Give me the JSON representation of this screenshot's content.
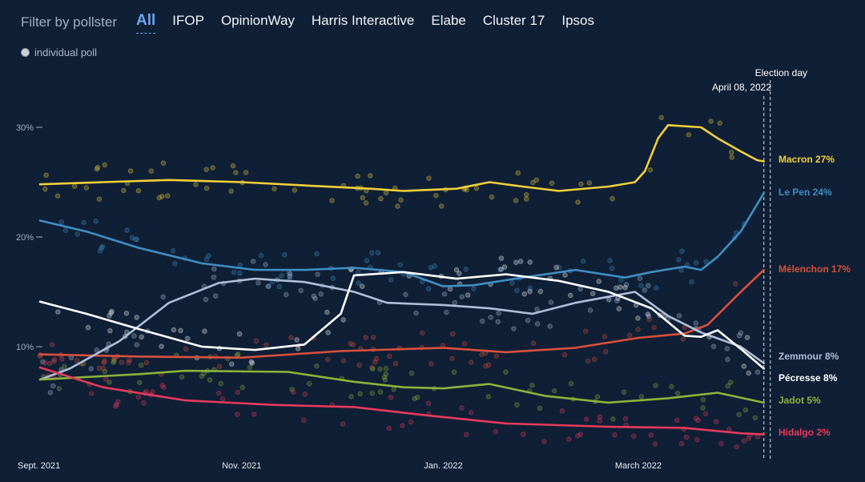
{
  "filter": {
    "label": "Filter by pollster",
    "tabs": [
      "All",
      "IFOP",
      "OpinionWay",
      "Harris Interactive",
      "Elabe",
      "Cluster 17",
      "Ipsos"
    ],
    "active": "All"
  },
  "legend": {
    "individual_poll": "individual poll"
  },
  "election": {
    "label": "Election day",
    "date": "April 08, 2022"
  },
  "chart_data": {
    "type": "line",
    "x_ticks": [
      "Sept. 2021",
      "Nov. 2021",
      "Jan. 2022",
      "March 2022"
    ],
    "y_ticks": [
      "10%",
      "20%",
      "30%"
    ],
    "ylim": [
      0,
      35
    ],
    "x_domain": [
      "2021-09-01",
      "2022-04-10"
    ],
    "series": [
      {
        "name": "Macron",
        "label": "Macron 27%",
        "color": "#f2d03a",
        "points": [
          [
            "2021-09-01",
            24.8
          ],
          [
            "2021-09-20",
            25.0
          ],
          [
            "2021-10-10",
            25.2
          ],
          [
            "2021-11-01",
            25.0
          ],
          [
            "2021-11-20",
            24.7
          ],
          [
            "2021-12-10",
            24.4
          ],
          [
            "2021-12-20",
            24.2
          ],
          [
            "2022-01-05",
            24.4
          ],
          [
            "2022-01-15",
            25.0
          ],
          [
            "2022-01-25",
            24.6
          ],
          [
            "2022-02-05",
            24.2
          ],
          [
            "2022-02-20",
            24.6
          ],
          [
            "2022-02-28",
            25.0
          ],
          [
            "2022-03-03",
            26.0
          ],
          [
            "2022-03-07",
            29.0
          ],
          [
            "2022-03-10",
            30.2
          ],
          [
            "2022-03-20",
            30.0
          ],
          [
            "2022-03-25",
            29.0
          ],
          [
            "2022-04-01",
            27.8
          ],
          [
            "2022-04-06",
            27.0
          ],
          [
            "2022-04-08",
            26.9
          ]
        ]
      },
      {
        "name": "Le Pen",
        "label": "Le Pen 24%",
        "color": "#3f8ec4",
        "points": [
          [
            "2021-09-01",
            21.5
          ],
          [
            "2021-09-15",
            20.5
          ],
          [
            "2021-10-01",
            19.0
          ],
          [
            "2021-10-20",
            17.6
          ],
          [
            "2021-11-05",
            17.0
          ],
          [
            "2021-11-20",
            17.0
          ],
          [
            "2021-12-05",
            17.2
          ],
          [
            "2021-12-20",
            16.8
          ],
          [
            "2022-01-01",
            15.5
          ],
          [
            "2022-01-10",
            15.6
          ],
          [
            "2022-01-25",
            16.3
          ],
          [
            "2022-02-10",
            17.0
          ],
          [
            "2022-02-25",
            16.3
          ],
          [
            "2022-03-05",
            16.8
          ],
          [
            "2022-03-15",
            17.3
          ],
          [
            "2022-03-20",
            17.0
          ],
          [
            "2022-03-25",
            18.2
          ],
          [
            "2022-04-01",
            20.5
          ],
          [
            "2022-04-08",
            24.0
          ]
        ]
      },
      {
        "name": "Mélenchon",
        "label": "Mélenchon 17%",
        "color": "#d9503c",
        "points": [
          [
            "2021-09-01",
            9.3
          ],
          [
            "2021-10-01",
            9.1
          ],
          [
            "2021-11-01",
            9.0
          ],
          [
            "2021-12-01",
            9.6
          ],
          [
            "2022-01-01",
            9.9
          ],
          [
            "2022-01-20",
            9.5
          ],
          [
            "2022-02-10",
            9.9
          ],
          [
            "2022-03-01",
            10.8
          ],
          [
            "2022-03-15",
            11.2
          ],
          [
            "2022-03-22",
            12.0
          ],
          [
            "2022-04-01",
            15.0
          ],
          [
            "2022-04-08",
            17.0
          ]
        ]
      },
      {
        "name": "Zemmour",
        "label": "Zemmour 8%",
        "color": "#aebfdb",
        "points": [
          [
            "2021-09-01",
            7.0
          ],
          [
            "2021-09-10",
            8.0
          ],
          [
            "2021-09-25",
            10.5
          ],
          [
            "2021-10-10",
            14.0
          ],
          [
            "2021-10-25",
            15.8
          ],
          [
            "2021-11-05",
            16.2
          ],
          [
            "2021-11-20",
            15.9
          ],
          [
            "2021-12-05",
            15.0
          ],
          [
            "2021-12-15",
            14.0
          ],
          [
            "2022-01-01",
            13.8
          ],
          [
            "2022-01-15",
            13.5
          ],
          [
            "2022-01-28",
            13.0
          ],
          [
            "2022-02-10",
            14.0
          ],
          [
            "2022-02-28",
            15.0
          ],
          [
            "2022-03-10",
            12.8
          ],
          [
            "2022-03-20",
            11.3
          ],
          [
            "2022-04-01",
            10.0
          ],
          [
            "2022-04-08",
            8.5
          ]
        ]
      },
      {
        "name": "Pécresse",
        "label": "Pécresse 8%",
        "color": "#ffffff",
        "points": [
          [
            "2021-09-01",
            14.1
          ],
          [
            "2021-09-15",
            13.0
          ],
          [
            "2021-10-01",
            11.6
          ],
          [
            "2021-10-20",
            10.0
          ],
          [
            "2021-11-05",
            9.7
          ],
          [
            "2021-11-20",
            10.2
          ],
          [
            "2021-12-01",
            13.0
          ],
          [
            "2021-12-05",
            16.5
          ],
          [
            "2021-12-20",
            16.8
          ],
          [
            "2022-01-05",
            16.2
          ],
          [
            "2022-01-20",
            16.6
          ],
          [
            "2022-02-05",
            16.0
          ],
          [
            "2022-02-20",
            15.0
          ],
          [
            "2022-03-05",
            13.5
          ],
          [
            "2022-03-15",
            11.0
          ],
          [
            "2022-03-20",
            10.9
          ],
          [
            "2022-03-25",
            11.5
          ],
          [
            "2022-04-01",
            9.8
          ],
          [
            "2022-04-08",
            8.0
          ]
        ]
      },
      {
        "name": "Jadot",
        "label": "Jadot 5%",
        "color": "#8cb43a",
        "points": [
          [
            "2021-09-01",
            7.0
          ],
          [
            "2021-10-01",
            7.5
          ],
          [
            "2021-10-15",
            7.8
          ],
          [
            "2021-11-15",
            7.7
          ],
          [
            "2021-12-05",
            6.8
          ],
          [
            "2021-12-20",
            6.3
          ],
          [
            "2022-01-01",
            6.2
          ],
          [
            "2022-01-15",
            6.6
          ],
          [
            "2022-02-01",
            5.5
          ],
          [
            "2022-02-20",
            4.9
          ],
          [
            "2022-03-10",
            5.3
          ],
          [
            "2022-03-25",
            5.8
          ],
          [
            "2022-04-08",
            4.9
          ]
        ]
      },
      {
        "name": "Hidalgo",
        "label": "Hidalgo 2%",
        "color": "#e83a5c",
        "points": [
          [
            "2021-09-01",
            8.1
          ],
          [
            "2021-09-20",
            6.3
          ],
          [
            "2021-10-15",
            5.1
          ],
          [
            "2021-11-10",
            4.7
          ],
          [
            "2021-12-05",
            4.5
          ],
          [
            "2021-12-25",
            3.8
          ],
          [
            "2022-01-20",
            3.0
          ],
          [
            "2022-02-20",
            2.7
          ],
          [
            "2022-03-15",
            2.6
          ],
          [
            "2022-04-01",
            2.1
          ],
          [
            "2022-04-08",
            2.0
          ]
        ]
      }
    ]
  }
}
